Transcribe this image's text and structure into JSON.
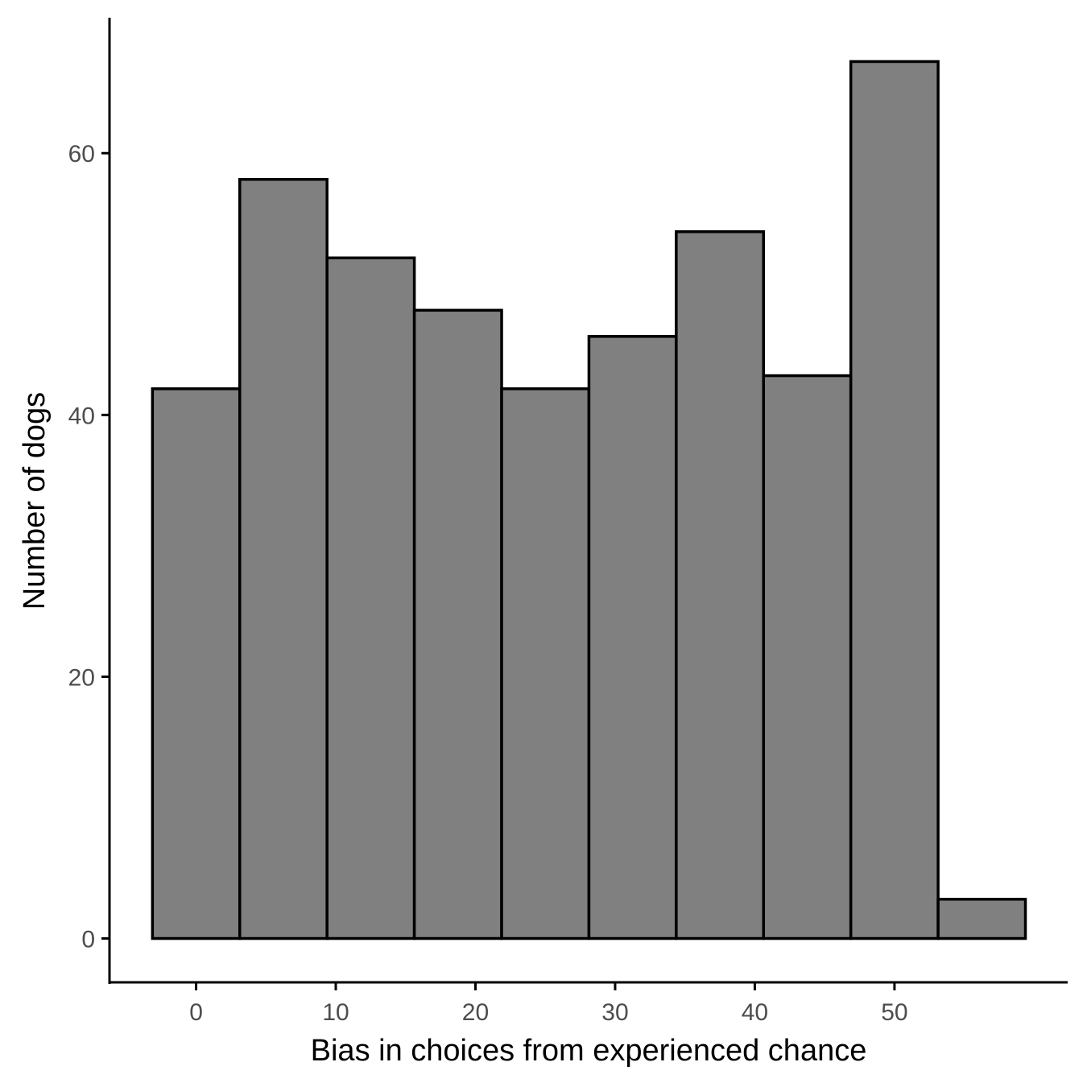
{
  "chart_data": {
    "type": "bar",
    "title": "",
    "xlabel": "Bias in choices from experienced chance",
    "ylabel": "Number of dogs",
    "bins": [
      {
        "x0": -3.125,
        "x1": 3.125,
        "count": 42
      },
      {
        "x0": 3.125,
        "x1": 9.375,
        "count": 58
      },
      {
        "x0": 9.375,
        "x1": 15.625,
        "count": 52
      },
      {
        "x0": 15.625,
        "x1": 21.875,
        "count": 48
      },
      {
        "x0": 21.875,
        "x1": 28.125,
        "count": 42
      },
      {
        "x0": 28.125,
        "x1": 34.375,
        "count": 46
      },
      {
        "x0": 34.375,
        "x1": 40.625,
        "count": 54
      },
      {
        "x0": 40.625,
        "x1": 46.875,
        "count": 43
      },
      {
        "x0": 46.875,
        "x1": 53.125,
        "count": 67
      },
      {
        "x0": 53.125,
        "x1": 59.375,
        "count": 3
      }
    ],
    "x_ticks": [
      0,
      10,
      20,
      30,
      40,
      50
    ],
    "y_ticks": [
      0,
      20,
      40,
      60
    ],
    "xlim": [
      -6.2,
      62.4
    ],
    "ylim": [
      -3.35,
      70.35
    ],
    "colors": {
      "fill": "#808080",
      "outline": "#000000"
    },
    "grid": false,
    "legend": "none"
  }
}
